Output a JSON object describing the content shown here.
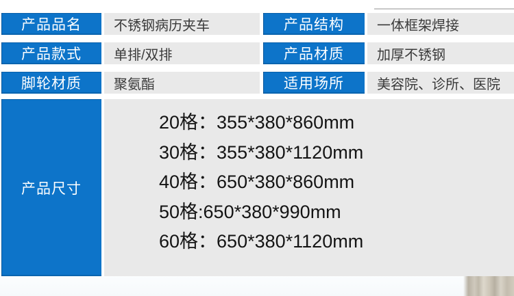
{
  "spec": {
    "rows_left": [
      {
        "label": "产品品名",
        "value": "不锈钢病历夹车"
      },
      {
        "label": "产品款式",
        "value": "单排/双排"
      },
      {
        "label": "脚轮材质",
        "value": "聚氨酯"
      }
    ],
    "rows_right": [
      {
        "label": "产品结构",
        "value": "一体框架焊接"
      },
      {
        "label": "产品材质",
        "value": "加厚不锈钢"
      },
      {
        "label": "适用场所",
        "value": "美容院、诊所、医院"
      }
    ],
    "size": {
      "label": "产品尺寸",
      "lines": [
        "20格：355*380*860mm",
        "30格：355*380*1120mm",
        "40格：650*380*860mm",
        "50格:650*380*990mm",
        "60格：650*380*1120mm"
      ]
    }
  },
  "colors": {
    "label_bg": "#0d74c9",
    "value_bg": "#e9e9e9",
    "label_text": "#ffffff",
    "value_text": "#3a3a3a",
    "size_text": "#141414",
    "photo_streak": "#c4bdaf"
  }
}
